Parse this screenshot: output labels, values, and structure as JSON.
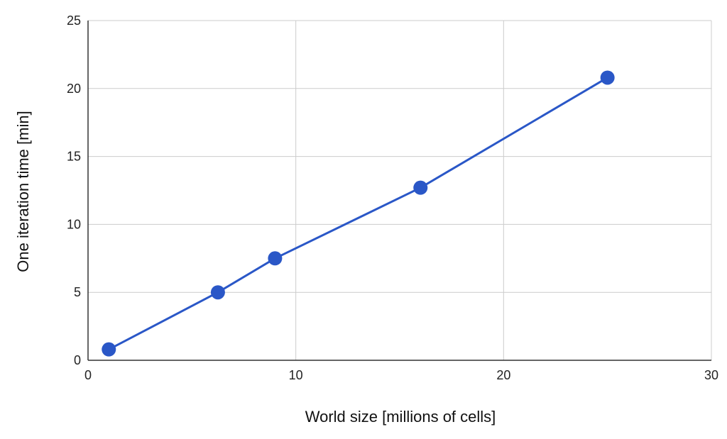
{
  "chart_data": {
    "type": "line",
    "title": "",
    "xlabel": "World size [millions of cells]",
    "ylabel": "One iteration time [min]",
    "xlim": [
      0,
      30
    ],
    "ylim": [
      0,
      25
    ],
    "xticks": [
      0,
      10,
      20,
      30
    ],
    "yticks": [
      0,
      5,
      10,
      15,
      20,
      25
    ],
    "grid": true,
    "legend": "none",
    "series": [
      {
        "x": [
          1,
          6.25,
          9,
          16,
          25
        ],
        "y": [
          0.8,
          5.0,
          7.5,
          12.7,
          20.8
        ],
        "color": "#2a57c7",
        "markers": true
      }
    ]
  }
}
